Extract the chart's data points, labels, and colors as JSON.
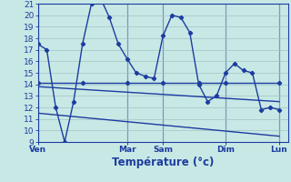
{
  "background_color": "#c8e8e5",
  "grid_color": "#a0c4c2",
  "line_color": "#1c3ca0",
  "sep_color": "#3050a0",
  "xlabel": "Température (°c)",
  "xlabel_fontsize": 8.5,
  "ylabel_fontsize": 6.5,
  "tick_fontsize": 6.5,
  "ylim": [
    9,
    21
  ],
  "yticks": [
    9,
    10,
    11,
    12,
    13,
    14,
    15,
    16,
    17,
    18,
    19,
    20,
    21
  ],
  "xtick_labels": [
    "Ven",
    "Mar",
    "Sam",
    "Dim",
    "Lun"
  ],
  "xtick_positions": [
    0,
    10,
    14,
    21,
    27
  ],
  "xmax": 28,
  "line1_x": [
    0,
    1,
    2,
    3,
    4,
    5,
    6,
    7,
    8,
    9,
    10,
    11,
    12,
    13,
    14,
    15,
    16,
    17,
    18,
    19,
    20,
    21,
    22,
    23,
    24,
    25,
    26,
    27
  ],
  "line1_y": [
    17.5,
    17.0,
    12.0,
    9.0,
    12.5,
    17.5,
    21.0,
    21.5,
    19.8,
    17.5,
    16.2,
    15.0,
    14.7,
    14.5,
    18.2,
    20.0,
    19.8,
    18.5,
    14.0,
    12.5,
    13.0,
    15.0,
    15.8,
    15.2,
    15.0,
    11.8,
    12.0,
    11.8
  ],
  "line2_x": [
    0,
    5,
    10,
    14,
    18,
    21,
    27
  ],
  "line2_y": [
    14.1,
    14.1,
    14.1,
    14.1,
    14.1,
    14.1,
    14.1
  ],
  "line3_x": [
    0,
    27
  ],
  "line3_y": [
    13.8,
    12.5
  ],
  "line4_x": [
    0,
    27
  ],
  "line4_y": [
    11.5,
    9.5
  ],
  "marker": "D",
  "markersize": 2.2,
  "linewidth": 1.0
}
